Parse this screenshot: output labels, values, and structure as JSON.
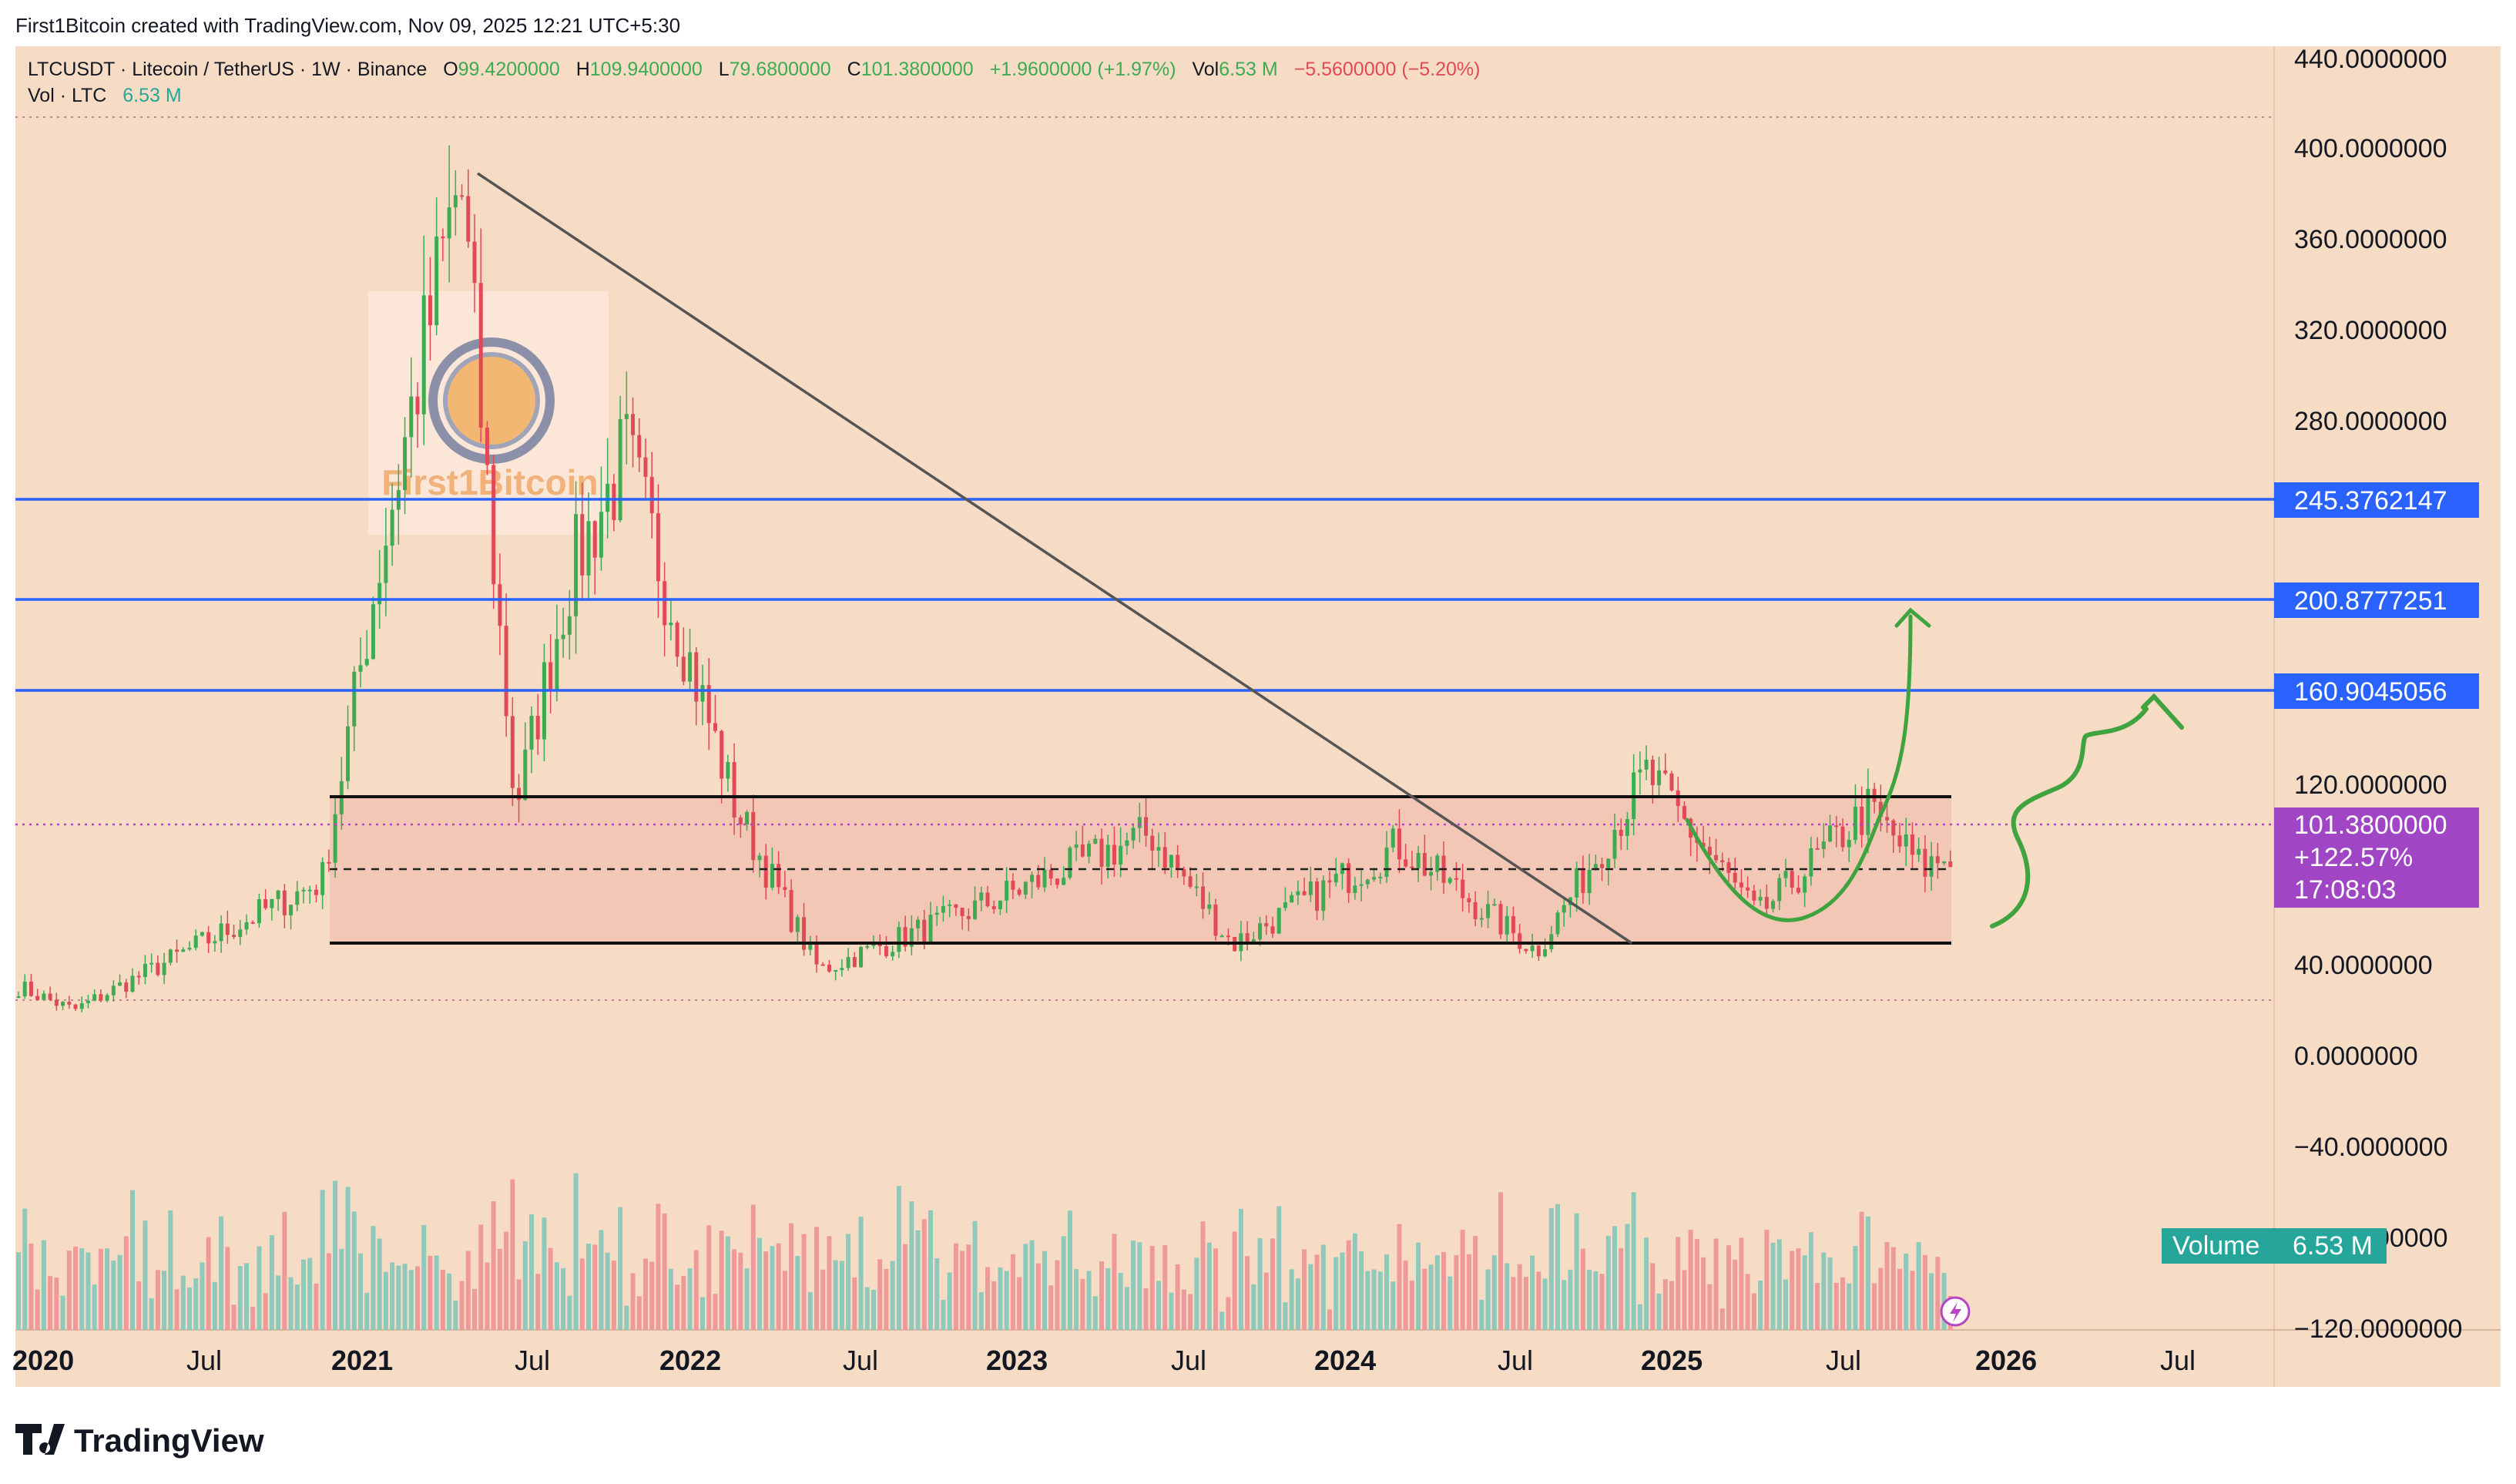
{
  "header": {
    "created_by": "First1Bitcoin created with TradingView.com, Nov 09, 2025 12:21 UTC+5:30"
  },
  "legend": {
    "symbol": "LTCUSDT · Litecoin / TetherUS · 1W · Binance",
    "open_label": "O",
    "open": "99.4200000",
    "high_label": "H",
    "high": "109.9400000",
    "low_label": "L",
    "low": "79.6800000",
    "close_label": "C",
    "close": "101.3800000",
    "change": "+1.9600000 (+1.97%)",
    "vol_label": "Vol",
    "vol": "6.53 M",
    "vol_change": "−5.5600000 (−5.20%)",
    "vol_row_label": "Vol · LTC",
    "vol_row_value": "6.53 M"
  },
  "price_axis": {
    "ticks": [
      "440.0000000",
      "400.0000000",
      "360.0000000",
      "320.0000000",
      "280.0000000",
      "120.0000000",
      "40.0000000",
      "0.0000000",
      "−40.0000000",
      "−80.0000000",
      "−120.0000000"
    ],
    "level_badges": [
      "245.3762147",
      "200.8777251",
      "160.9045056"
    ],
    "current_price_badge": [
      "101.3800000",
      "+122.57%",
      "17:08:03"
    ],
    "volume_badge_label": "Volume",
    "volume_badge_value": "6.53 M"
  },
  "time_axis": {
    "labels": [
      "2020",
      "Jul",
      "2021",
      "Jul",
      "2022",
      "Jul",
      "2023",
      "Jul",
      "2024",
      "Jul",
      "2025",
      "Jul",
      "2026",
      "Jul"
    ]
  },
  "watermark": {
    "text": "First1Bitcoin"
  },
  "footer": {
    "brand": "TradingView"
  },
  "colors": {
    "background": "#f7dcc5",
    "up_candle": "#3eaa52",
    "down_candle": "#e04a55",
    "level_line": "#2962ff",
    "badge_blue": "#2962ff",
    "badge_purple": "#a045c3",
    "volume_badge": "#26a69a",
    "range_box": "#f3c7b5",
    "annotation_green": "#3fa33f"
  },
  "chart_data": {
    "type": "candlestick",
    "interval": "1W",
    "x_range": [
      "2019-12",
      "2026-09"
    ],
    "y_range": [
      -120,
      440
    ],
    "horizontal_levels": [
      245.3762147,
      200.8777251,
      160.9045056
    ],
    "range_top": 113,
    "range_mid": 84,
    "range_bottom": 50,
    "current_price": 101.38,
    "trendline": {
      "from": {
        "date": "2021-05",
        "price": 388
      },
      "to": {
        "date": "2024-10",
        "price": 50
      }
    },
    "key_points": [
      {
        "date": "2020-01",
        "price": 45
      },
      {
        "date": "2020-03",
        "price": 35
      },
      {
        "date": "2020-12",
        "price": 90
      },
      {
        "date": "2021-02",
        "price": 220
      },
      {
        "date": "2021-05",
        "price": 388
      },
      {
        "date": "2021-07",
        "price": 120
      },
      {
        "date": "2021-09",
        "price": 220
      },
      {
        "date": "2021-11",
        "price": 270
      },
      {
        "date": "2022-03",
        "price": 120
      },
      {
        "date": "2022-06",
        "price": 52
      },
      {
        "date": "2022-11",
        "price": 75
      },
      {
        "date": "2023-06",
        "price": 110
      },
      {
        "date": "2023-09",
        "price": 63
      },
      {
        "date": "2024-03",
        "price": 105
      },
      {
        "date": "2024-08",
        "price": 60
      },
      {
        "date": "2024-12",
        "price": 135
      },
      {
        "date": "2025-04",
        "price": 75
      },
      {
        "date": "2025-08",
        "price": 120
      },
      {
        "date": "2025-10",
        "price": 95
      },
      {
        "date": "2025-11",
        "price": 101.38
      }
    ]
  }
}
